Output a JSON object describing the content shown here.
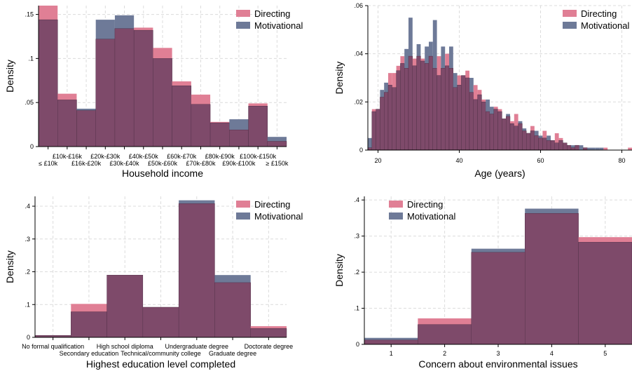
{
  "colors": {
    "directing": "#e07f95",
    "motivational": "#6e7a98",
    "overlap": "#7e4a6a",
    "grid": "#dcdcdc"
  },
  "chart_data": [
    {
      "type": "bar",
      "subtype": "histogram-overlay",
      "xlabel": "Household income",
      "ylabel": "Density",
      "ylim": [
        0,
        0.16
      ],
      "yticks": [
        {
          "v": 0,
          "t": "0"
        },
        {
          "v": 0.05,
          "t": ".05"
        },
        {
          "v": 0.1,
          "t": ".1"
        },
        {
          "v": 0.15,
          "t": ".15"
        }
      ],
      "grid": true,
      "legend": "top-right",
      "categories": [
        "≤ £10k",
        "£10k-£16k",
        "£16k-£20k",
        "£20k-£30k",
        "£30k-£40k",
        "£40k-£50k",
        "£50k-£60k",
        "£60k-£70k",
        "£70k-£80k",
        "£80k-£90k",
        "£90k-£100k",
        "£100k-£150k",
        "≥ £150k"
      ],
      "label_rows": [
        1,
        0,
        1,
        0,
        1,
        0,
        1,
        0,
        1,
        0,
        1,
        0,
        1
      ],
      "series": [
        {
          "name": "Directing",
          "values": [
            0.16,
            0.06,
            0.041,
            0.122,
            0.134,
            0.135,
            0.112,
            0.074,
            0.059,
            0.028,
            0.019,
            0.049,
            0.006
          ]
        },
        {
          "name": "Motivational",
          "values": [
            0.144,
            0.053,
            0.043,
            0.144,
            0.149,
            0.132,
            0.1,
            0.069,
            0.048,
            0.027,
            0.031,
            0.046,
            0.011
          ]
        }
      ]
    },
    {
      "type": "bar",
      "subtype": "histogram-overlay",
      "xlabel": "Age (years)",
      "ylabel": "Density",
      "xlim": [
        17.5,
        82.5
      ],
      "ylim": [
        0,
        0.06
      ],
      "xticks": [
        20,
        40,
        60,
        80
      ],
      "yticks": [
        {
          "v": 0,
          "t": "0"
        },
        {
          "v": 0.02,
          "t": ".02"
        },
        {
          "v": 0.04,
          "t": ".04"
        },
        {
          "v": 0.06,
          "t": ".06"
        }
      ],
      "grid": true,
      "legend": "top-right",
      "x": [
        18,
        19,
        20,
        21,
        22,
        23,
        24,
        25,
        26,
        27,
        28,
        29,
        30,
        31,
        32,
        33,
        34,
        35,
        36,
        37,
        38,
        39,
        40,
        41,
        42,
        43,
        44,
        45,
        46,
        47,
        48,
        49,
        50,
        51,
        52,
        53,
        54,
        55,
        56,
        57,
        58,
        59,
        60,
        61,
        62,
        63,
        64,
        65,
        66,
        67,
        68,
        69,
        70,
        71,
        72,
        73,
        74,
        75,
        76,
        77,
        78,
        79,
        80,
        81,
        82
      ],
      "series": [
        {
          "name": "Directing",
          "values": [
            0.001,
            0.017,
            0.017,
            0.022,
            0.024,
            0.032,
            0.032,
            0.035,
            0.039,
            0.034,
            0.039,
            0.038,
            0.039,
            0.038,
            0.036,
            0.039,
            0.034,
            0.039,
            0.034,
            0.04,
            0.034,
            0.026,
            0.031,
            0.031,
            0.033,
            0.024,
            0.027,
            0.025,
            0.021,
            0.016,
            0.015,
            0.018,
            0.017,
            0.013,
            0.014,
            0.012,
            0.015,
            0.011,
            0.008,
            0.007,
            0.01,
            0.006,
            0.005,
            0.008,
            0.004,
            0.004,
            0.007,
            0.005,
            0.003,
            0.002,
            0.001,
            0.002,
            0.0,
            0.001,
            0.0,
            0.0,
            0.0,
            0.0,
            0.001,
            0.0,
            0.0,
            0.0,
            0.0,
            0.0,
            0.001
          ]
        },
        {
          "name": "Motivational",
          "values": [
            0.005,
            0.016,
            0.017,
            0.025,
            0.028,
            0.027,
            0.026,
            0.033,
            0.036,
            0.042,
            0.055,
            0.035,
            0.044,
            0.037,
            0.043,
            0.045,
            0.054,
            0.031,
            0.043,
            0.035,
            0.043,
            0.032,
            0.027,
            0.031,
            0.03,
            0.03,
            0.021,
            0.023,
            0.02,
            0.021,
            0.018,
            0.017,
            0.016,
            0.013,
            0.015,
            0.011,
            0.01,
            0.012,
            0.009,
            0.007,
            0.008,
            0.008,
            0.006,
            0.005,
            0.006,
            0.004,
            0.003,
            0.004,
            0.003,
            0.002,
            0.002,
            0.002,
            0.002,
            0.001,
            0.001,
            0.001,
            0.001,
            0.001,
            0.0,
            0.0,
            0.0,
            0.0,
            0.0,
            0.0,
            0.0
          ]
        }
      ]
    },
    {
      "type": "bar",
      "subtype": "histogram-overlay",
      "xlabel": "Highest education level completed",
      "ylabel": "Density",
      "ylim": [
        0,
        0.43
      ],
      "yticks": [
        {
          "v": 0,
          "t": "0"
        },
        {
          "v": 0.1,
          "t": ".1"
        },
        {
          "v": 0.2,
          "t": ".2"
        },
        {
          "v": 0.3,
          "t": ".3"
        },
        {
          "v": 0.4,
          "t": ".4"
        }
      ],
      "grid": true,
      "legend": "top-right",
      "categories": [
        "No formal qualification",
        "Secondary education",
        "High school diploma",
        "Technical/community college",
        "Undergraduate degree",
        "Graduate degree",
        "Doctorate degree"
      ],
      "label_rows": [
        0,
        1,
        0,
        1,
        0,
        1,
        0
      ],
      "series": [
        {
          "name": "Directing",
          "values": [
            0.006,
            0.102,
            0.19,
            0.092,
            0.408,
            0.167,
            0.034
          ]
        },
        {
          "name": "Motivational",
          "values": [
            0.006,
            0.078,
            0.19,
            0.092,
            0.418,
            0.19,
            0.027
          ]
        }
      ]
    },
    {
      "type": "bar",
      "subtype": "histogram-overlay",
      "xlabel": "Concern about environmental issues",
      "ylabel": "Density",
      "ylim": [
        0,
        0.41
      ],
      "yticks": [
        {
          "v": 0,
          "t": "0"
        },
        {
          "v": 0.1,
          "t": ".1"
        },
        {
          "v": 0.2,
          "t": ".2"
        },
        {
          "v": 0.3,
          "t": ".3"
        },
        {
          "v": 0.4,
          "t": ".4"
        }
      ],
      "grid": true,
      "legend": "top-left",
      "categories": [
        "1",
        "2",
        "3",
        "4",
        "5"
      ],
      "label_rows": [
        0,
        0,
        0,
        0,
        0
      ],
      "series": [
        {
          "name": "Directing",
          "values": [
            0.012,
            0.072,
            0.255,
            0.363,
            0.297
          ]
        },
        {
          "name": "Motivational",
          "values": [
            0.018,
            0.055,
            0.265,
            0.376,
            0.283
          ]
        }
      ]
    }
  ]
}
